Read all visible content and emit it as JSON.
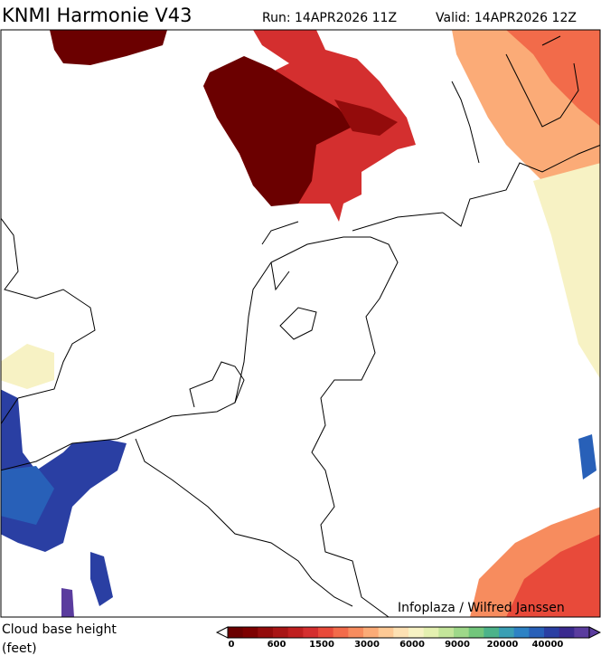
{
  "header": {
    "title": "KNMI Harmonie V43",
    "run": "Run: 14APR2026 11Z",
    "valid": "Valid: 14APR2026 12Z"
  },
  "map": {
    "credit": "Infoplaza / Wilfred Janssen"
  },
  "legend": {
    "title": "Cloud base height",
    "unit": "(feet)",
    "labels": [
      "0",
      "600",
      "1500",
      "3000",
      "6000",
      "9000",
      "20000",
      "40000"
    ],
    "colors": [
      "#6b0000",
      "#7d0000",
      "#930b0b",
      "#a81515",
      "#bf1f1f",
      "#d42f2f",
      "#e84a3a",
      "#f26b4a",
      "#f78c5e",
      "#fbab77",
      "#fdc995",
      "#fde1b3",
      "#f7f2c4",
      "#e4f0b0",
      "#c4e59a",
      "#9ed889",
      "#72c67b",
      "#4cb38a",
      "#3a9fb4",
      "#2d82c4",
      "#2860b8",
      "#2a3fa3",
      "#3a2a8f",
      "#5a3c9e"
    ]
  }
}
